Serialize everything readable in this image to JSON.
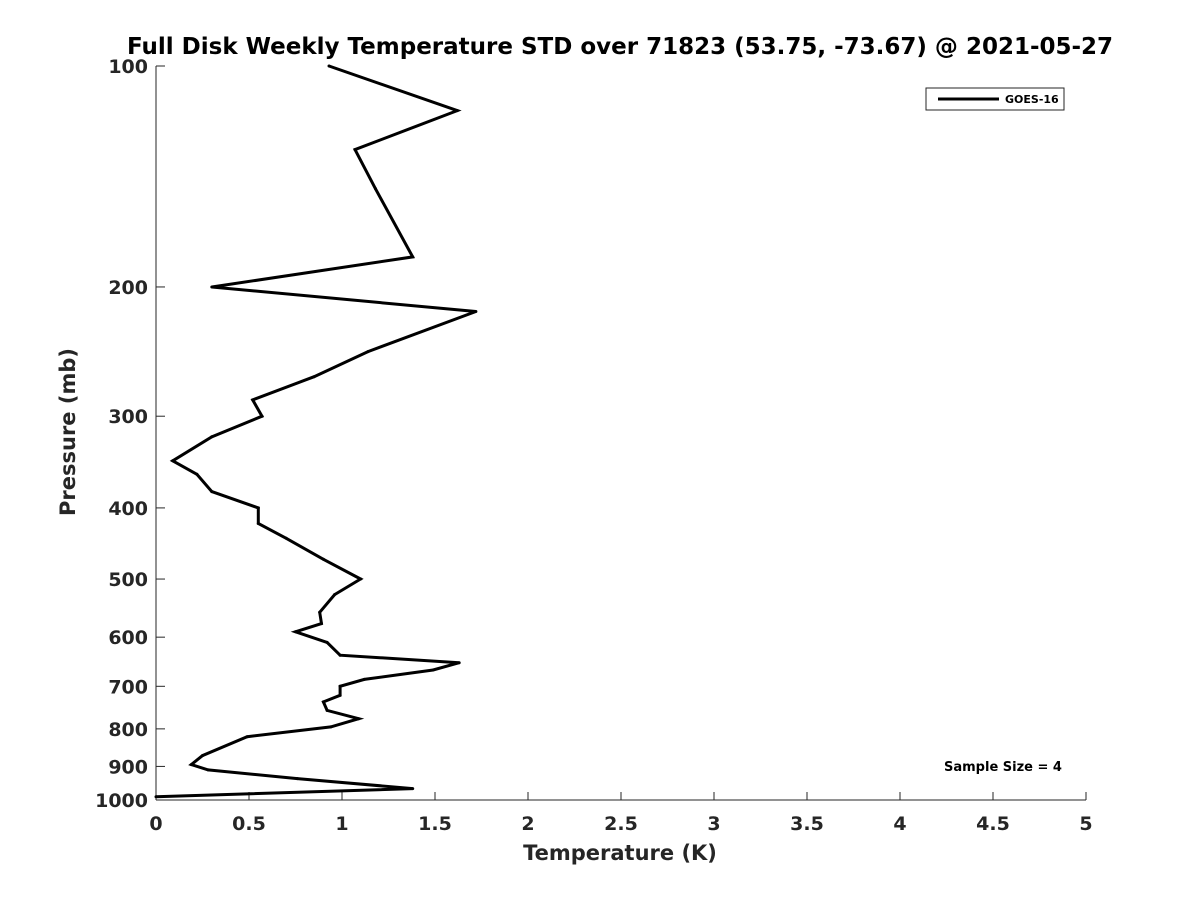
{
  "chart_data": {
    "type": "line",
    "title": "Full Disk Weekly Temperature STD over 71823 (53.75, -73.67) @ 2021-05-27",
    "xlabel": "Temperature (K)",
    "ylabel": "Pressure (mb)",
    "xlim": [
      0,
      5
    ],
    "ylim": [
      100,
      1000
    ],
    "y_scale": "log",
    "y_reversed": true,
    "grid": false,
    "legend_position": "top-right",
    "xticks": [
      0,
      0.5,
      1,
      1.5,
      2,
      2.5,
      3,
      3.5,
      4,
      4.5,
      5
    ],
    "xtick_labels": [
      "0",
      "0.5",
      "1",
      "1.5",
      "2",
      "2.5",
      "3",
      "3.5",
      "4",
      "4.5",
      "5"
    ],
    "yticks": [
      100,
      200,
      300,
      400,
      500,
      600,
      700,
      800,
      900,
      1000
    ],
    "ytick_labels": [
      "100",
      "200",
      "300",
      "400",
      "500",
      "600",
      "700",
      "800",
      "900",
      "1000"
    ],
    "series": [
      {
        "name": "GOES-16",
        "color": "#000000",
        "x": [
          0.93,
          1.62,
          1.07,
          1.18,
          1.38,
          0.3,
          1.72,
          1.14,
          0.85,
          0.52,
          0.57,
          0.3,
          0.09,
          0.22,
          0.3,
          0.55,
          0.55,
          0.7,
          0.9,
          1.1,
          0.96,
          0.88,
          0.89,
          0.75,
          0.92,
          0.99,
          1.63,
          1.49,
          1.12,
          0.99,
          0.99,
          0.9,
          0.92,
          1.09,
          0.94,
          0.49,
          0.25,
          0.19,
          0.28,
          0.76,
          1.38,
          0.0
        ],
        "y": [
          100,
          115,
          130,
          147,
          182,
          200,
          216,
          245,
          265,
          285,
          300,
          320,
          345,
          360,
          380,
          400,
          420,
          440,
          470,
          500,
          525,
          555,
          575,
          590,
          610,
          635,
          650,
          665,
          685,
          700,
          720,
          735,
          755,
          775,
          795,
          820,
          870,
          895,
          910,
          935,
          965,
          990
        ]
      }
    ],
    "annotations": [
      "Sample Size = 4"
    ]
  }
}
